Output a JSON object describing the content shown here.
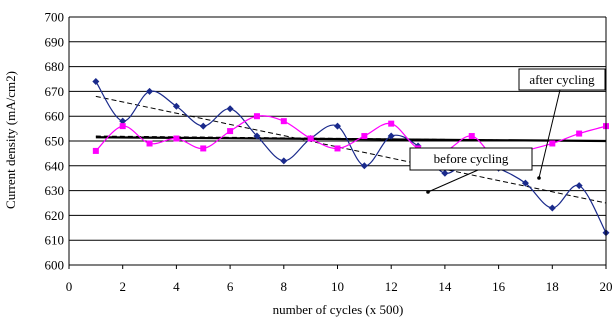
{
  "chart_data": {
    "type": "line",
    "xlabel": "number of cycles (x 500)",
    "ylabel": "Current density (mA/cm2)",
    "xlim": [
      0,
      20
    ],
    "ylim": [
      600,
      700
    ],
    "x_ticks": [
      0,
      2,
      4,
      6,
      8,
      10,
      12,
      14,
      16,
      18,
      20
    ],
    "y_ticks": [
      600,
      610,
      620,
      630,
      640,
      650,
      660,
      670,
      680,
      690,
      700
    ],
    "grid": "horizontal major lines",
    "x": [
      1,
      2,
      3,
      4,
      5,
      6,
      7,
      8,
      9,
      10,
      11,
      12,
      13,
      14,
      15,
      16,
      17,
      18,
      19,
      20
    ],
    "series": [
      {
        "color": "#1a2a8c",
        "marker": "diamond",
        "values": [
          674,
          658,
          670,
          664,
          656,
          663,
          652,
          642,
          651,
          656,
          640,
          652,
          648,
          637,
          643,
          639,
          633,
          623,
          632,
          613
        ]
      },
      {
        "color": "#ff00ff",
        "marker": "square",
        "values": [
          646,
          656,
          649,
          651,
          647,
          654,
          660,
          658,
          651,
          647,
          652,
          657,
          647,
          646,
          652,
          642,
          646,
          649,
          653,
          656
        ]
      }
    ],
    "trendlines": [
      {
        "style": "dashed",
        "from": [
          1,
          668
        ],
        "to": [
          20,
          625
        ]
      },
      {
        "style": "solid",
        "from": [
          1,
          651.5
        ],
        "to": [
          20,
          650
        ]
      },
      {
        "style": "dashed",
        "from": [
          1,
          652
        ],
        "to": [
          20,
          650
        ]
      }
    ],
    "annotations": [
      {
        "text": "before cycling"
      },
      {
        "text": "after cycling"
      }
    ]
  }
}
